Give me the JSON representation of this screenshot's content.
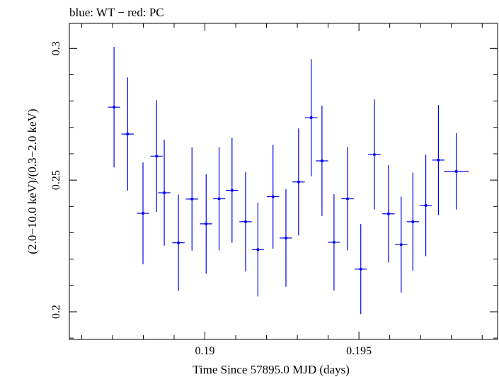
{
  "chart_data": {
    "type": "scatter",
    "title": "blue: WT − red: PC",
    "xlabel": "Time Since 57895.0 MJD (days)",
    "ylabel": "(2.0−10.0 keV)/(0.3−2.0 keV)",
    "xlim": [
      0.1856,
      0.1995
    ],
    "ylim": [
      0.1895,
      0.3095
    ],
    "x_ticks": [
      {
        "value": 0.19,
        "label": "0.19"
      },
      {
        "value": 0.195,
        "label": "0.195"
      }
    ],
    "y_ticks": [
      {
        "value": 0.2,
        "label": "0.2"
      },
      {
        "value": 0.25,
        "label": "0.25"
      },
      {
        "value": 0.3,
        "label": "0.3"
      }
    ],
    "grid": false,
    "series": [
      {
        "color": "#0000ee",
        "points": [
          {
            "x": 0.18705,
            "xerr": 0.0002,
            "y": 0.2777,
            "yerr": 0.0229
          },
          {
            "x": 0.18749,
            "xerr": 0.0002,
            "y": 0.2675,
            "yerr": 0.0215
          },
          {
            "x": 0.18799,
            "xerr": 0.0002,
            "y": 0.2374,
            "yerr": 0.0193
          },
          {
            "x": 0.18843,
            "xerr": 0.0002,
            "y": 0.2591,
            "yerr": 0.0212
          },
          {
            "x": 0.18868,
            "xerr": 0.0002,
            "y": 0.2452,
            "yerr": 0.0201
          },
          {
            "x": 0.18914,
            "xerr": 0.0002,
            "y": 0.2262,
            "yerr": 0.0183
          },
          {
            "x": 0.18958,
            "xerr": 0.0002,
            "y": 0.2428,
            "yerr": 0.0196
          },
          {
            "x": 0.19004,
            "xerr": 0.0002,
            "y": 0.2334,
            "yerr": 0.0189
          },
          {
            "x": 0.19046,
            "xerr": 0.0002,
            "y": 0.2429,
            "yerr": 0.0196
          },
          {
            "x": 0.19088,
            "xerr": 0.0002,
            "y": 0.2461,
            "yerr": 0.0199
          },
          {
            "x": 0.19132,
            "xerr": 0.0002,
            "y": 0.2342,
            "yerr": 0.0189
          },
          {
            "x": 0.19172,
            "xerr": 0.0002,
            "y": 0.2236,
            "yerr": 0.0178
          },
          {
            "x": 0.19221,
            "xerr": 0.0002,
            "y": 0.2437,
            "yerr": 0.0197
          },
          {
            "x": 0.19263,
            "xerr": 0.0002,
            "y": 0.228,
            "yerr": 0.0185
          },
          {
            "x": 0.19304,
            "xerr": 0.0002,
            "y": 0.2493,
            "yerr": 0.0203
          },
          {
            "x": 0.19345,
            "xerr": 0.0002,
            "y": 0.2737,
            "yerr": 0.0222
          },
          {
            "x": 0.1938,
            "xerr": 0.0002,
            "y": 0.2573,
            "yerr": 0.0209
          },
          {
            "x": 0.19419,
            "xerr": 0.0002,
            "y": 0.2264,
            "yerr": 0.0183
          },
          {
            "x": 0.19463,
            "xerr": 0.0002,
            "y": 0.2429,
            "yerr": 0.0196
          },
          {
            "x": 0.19506,
            "xerr": 0.0002,
            "y": 0.2162,
            "yerr": 0.0171
          },
          {
            "x": 0.1955,
            "xerr": 0.0002,
            "y": 0.2597,
            "yerr": 0.0209
          },
          {
            "x": 0.19596,
            "xerr": 0.0002,
            "y": 0.2372,
            "yerr": 0.0185
          },
          {
            "x": 0.19637,
            "xerr": 0.0002,
            "y": 0.2255,
            "yerr": 0.0182
          },
          {
            "x": 0.19675,
            "xerr": 0.0002,
            "y": 0.2342,
            "yerr": 0.0186
          },
          {
            "x": 0.19717,
            "xerr": 0.0002,
            "y": 0.2404,
            "yerr": 0.0193
          },
          {
            "x": 0.19758,
            "xerr": 0.0002,
            "y": 0.2576,
            "yerr": 0.0209
          },
          {
            "x": 0.19816,
            "xerr": 0.0004,
            "y": 0.2533,
            "yerr": 0.0145
          }
        ]
      }
    ]
  }
}
